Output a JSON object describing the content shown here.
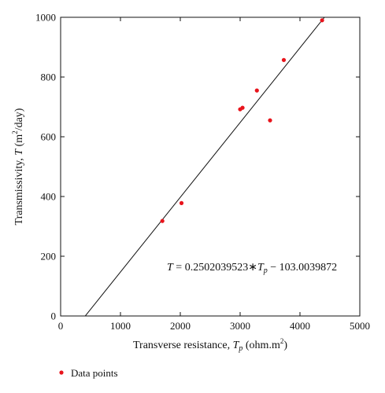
{
  "chart_data": {
    "type": "scatter",
    "xlabel_main": "Transverse resistance, ",
    "xlabel_var": "T",
    "xlabel_sub": "p",
    "xlabel_unit": " (ohm.m",
    "xlabel_sup": "2",
    "xlabel_close": ")",
    "ylabel_main": "Transmissivity, ",
    "ylabel_var": "T",
    "ylabel_unit": " (m",
    "ylabel_sup": "2",
    "ylabel_close": "/day)",
    "xlim": [
      0,
      5000
    ],
    "ylim": [
      0,
      1000
    ],
    "xticks": [
      0,
      1000,
      2000,
      3000,
      4000,
      5000
    ],
    "yticks": [
      0,
      200,
      400,
      600,
      800,
      1000
    ],
    "grid": false,
    "series": [
      {
        "name": "Data points",
        "color": "#e8141c",
        "points": [
          {
            "x": 1700,
            "y": 318
          },
          {
            "x": 2020,
            "y": 378
          },
          {
            "x": 3000,
            "y": 692
          },
          {
            "x": 3040,
            "y": 697
          },
          {
            "x": 3280,
            "y": 755
          },
          {
            "x": 3500,
            "y": 655
          },
          {
            "x": 3730,
            "y": 857
          },
          {
            "x": 4370,
            "y": 990
          }
        ]
      }
    ],
    "fit_line": {
      "slope": 0.2502039523,
      "intercept": -103.0039872,
      "x_range": [
        412,
        4410
      ],
      "color": "#111111"
    },
    "equation": {
      "lhs": "T",
      "mid": " = 0.2502039523∗",
      "var": "T",
      "sub": "p",
      "rhs": " − 103.0039872"
    },
    "legend": {
      "position": "bottom-left",
      "label": "Data points"
    }
  }
}
